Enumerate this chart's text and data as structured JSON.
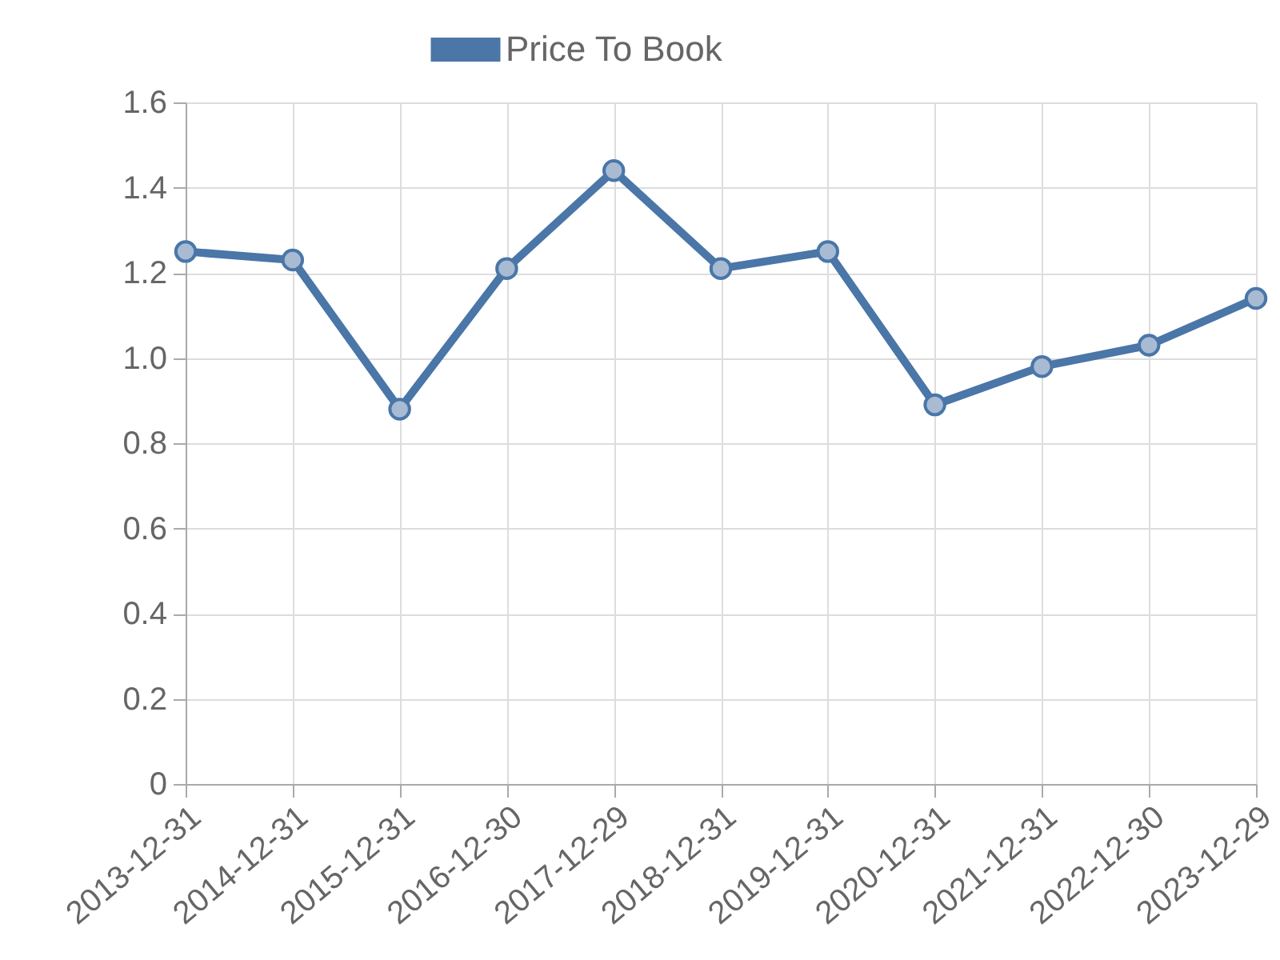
{
  "chart_data": {
    "type": "line",
    "categories": [
      "2013-12-31",
      "2014-12-31",
      "2015-12-31",
      "2016-12-30",
      "2017-12-29",
      "2018-12-31",
      "2019-12-31",
      "2020-12-31",
      "2021-12-31",
      "2022-12-30",
      "2023-12-29"
    ],
    "series": [
      {
        "name": "Price To Book",
        "color": "#4a76a8",
        "values": [
          1.25,
          1.23,
          0.88,
          1.21,
          1.44,
          1.21,
          1.25,
          0.89,
          0.98,
          1.03,
          1.14
        ]
      }
    ],
    "ylim": [
      0,
      1.6
    ],
    "yticks": [
      0,
      0.2,
      0.4,
      0.6,
      0.8,
      {
        "value": 1,
        "label": "1.0"
      },
      1.2,
      1.4,
      1.6
    ],
    "grid": true,
    "legend": "top",
    "marker": "circle",
    "line_style": "solid"
  }
}
